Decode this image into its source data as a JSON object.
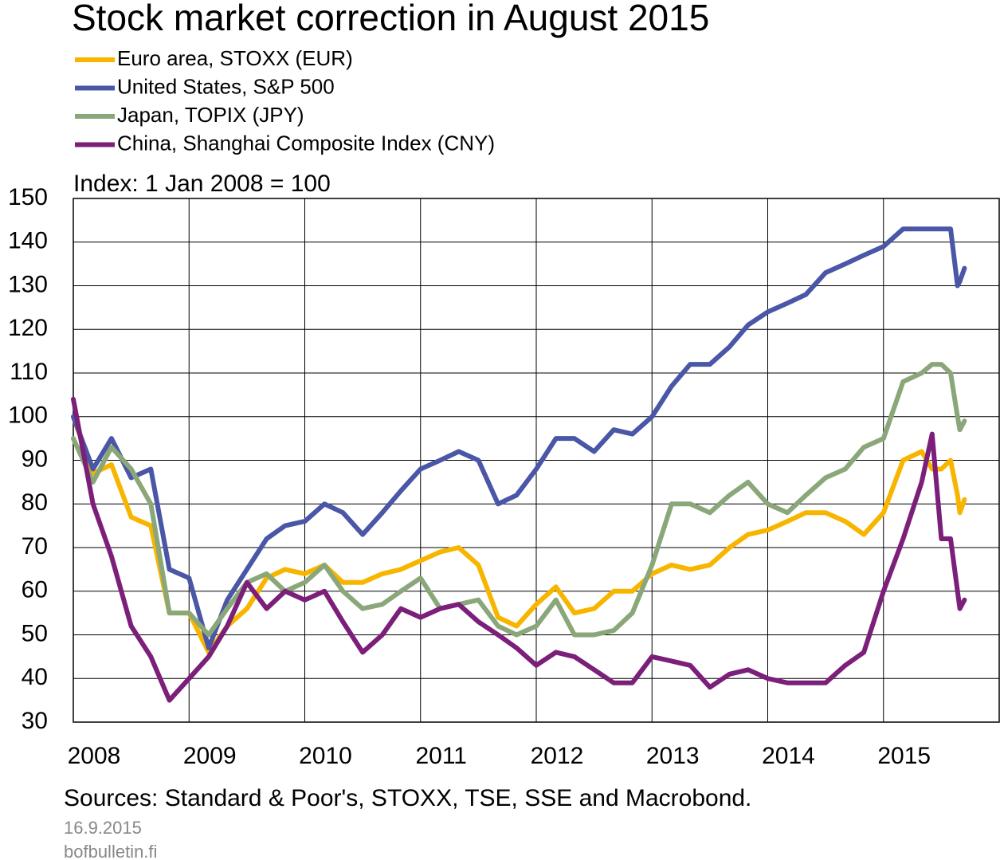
{
  "chart_data": {
    "type": "line",
    "title": "Stock market correction in August 2015",
    "ylabel": "Index: 1 Jan 2008 = 100",
    "source": "Sources: Standard & Poor's, STOXX, TSE, SSE and Macrobond.",
    "date": "16.9.2015",
    "site": "bofbulletin.fi",
    "x": [
      2008.0,
      2008.17,
      2008.33,
      2008.5,
      2008.67,
      2008.83,
      2009.0,
      2009.17,
      2009.33,
      2009.5,
      2009.67,
      2009.83,
      2010.0,
      2010.17,
      2010.33,
      2010.5,
      2010.67,
      2010.83,
      2011.0,
      2011.17,
      2011.33,
      2011.5,
      2011.67,
      2011.83,
      2012.0,
      2012.17,
      2012.33,
      2012.5,
      2012.67,
      2012.83,
      2013.0,
      2013.17,
      2013.33,
      2013.5,
      2013.67,
      2013.83,
      2014.0,
      2014.17,
      2014.33,
      2014.5,
      2014.67,
      2014.83,
      2015.0,
      2015.17,
      2015.33,
      2015.42,
      2015.5,
      2015.58,
      2015.64,
      2015.66,
      2015.7
    ],
    "series": [
      {
        "name": "Euro area, STOXX (EUR)",
        "color": "#f7b500",
        "values": [
          100,
          87,
          89,
          77,
          75,
          55,
          55,
          46,
          52,
          56,
          63,
          65,
          64,
          66,
          62,
          62,
          64,
          65,
          67,
          69,
          70,
          66,
          54,
          52,
          57,
          61,
          55,
          56,
          60,
          60,
          64,
          66,
          65,
          66,
          70,
          73,
          74,
          76,
          78,
          78,
          76,
          73,
          78,
          90,
          92,
          88,
          88,
          90,
          82,
          78,
          81
        ]
      },
      {
        "name": "United States, S&P 500",
        "color": "#4a56a6",
        "values": [
          100,
          88,
          95,
          86,
          88,
          65,
          63,
          47,
          58,
          65,
          72,
          75,
          76,
          80,
          78,
          73,
          78,
          83,
          88,
          90,
          92,
          90,
          80,
          82,
          88,
          95,
          95,
          92,
          97,
          96,
          100,
          107,
          112,
          112,
          116,
          121,
          124,
          126,
          128,
          133,
          135,
          137,
          139,
          143,
          143,
          143,
          143,
          143,
          130,
          131,
          134
        ]
      },
      {
        "name": "Japan, TOPIX (JPY)",
        "color": "#8aa77a",
        "values": [
          95,
          85,
          93,
          88,
          80,
          55,
          55,
          50,
          56,
          62,
          64,
          60,
          62,
          66,
          60,
          56,
          57,
          60,
          63,
          56,
          57,
          58,
          52,
          50,
          52,
          58,
          50,
          50,
          51,
          55,
          66,
          80,
          80,
          78,
          82,
          85,
          80,
          78,
          82,
          86,
          88,
          93,
          95,
          108,
          110,
          112,
          112,
          110,
          100,
          97,
          99
        ]
      },
      {
        "name": "China, Shanghai Composite Index (CNY)",
        "color": "#7b1f7a",
        "values": [
          104,
          80,
          68,
          52,
          45,
          35,
          40,
          45,
          52,
          62,
          56,
          60,
          58,
          60,
          53,
          46,
          50,
          56,
          54,
          56,
          57,
          53,
          50,
          47,
          43,
          46,
          45,
          42,
          39,
          39,
          45,
          44,
          43,
          38,
          41,
          42,
          40,
          39,
          39,
          39,
          43,
          46,
          60,
          72,
          85,
          96,
          72,
          72,
          60,
          56,
          58
        ]
      }
    ],
    "xlim": [
      2008,
      2016
    ],
    "xticks": [
      2008,
      2009,
      2010,
      2011,
      2012,
      2013,
      2014,
      2015
    ],
    "ylim": [
      30,
      150
    ],
    "yticks": [
      30,
      40,
      50,
      60,
      70,
      80,
      90,
      100,
      110,
      120,
      130,
      140,
      150
    ],
    "grid": true
  }
}
